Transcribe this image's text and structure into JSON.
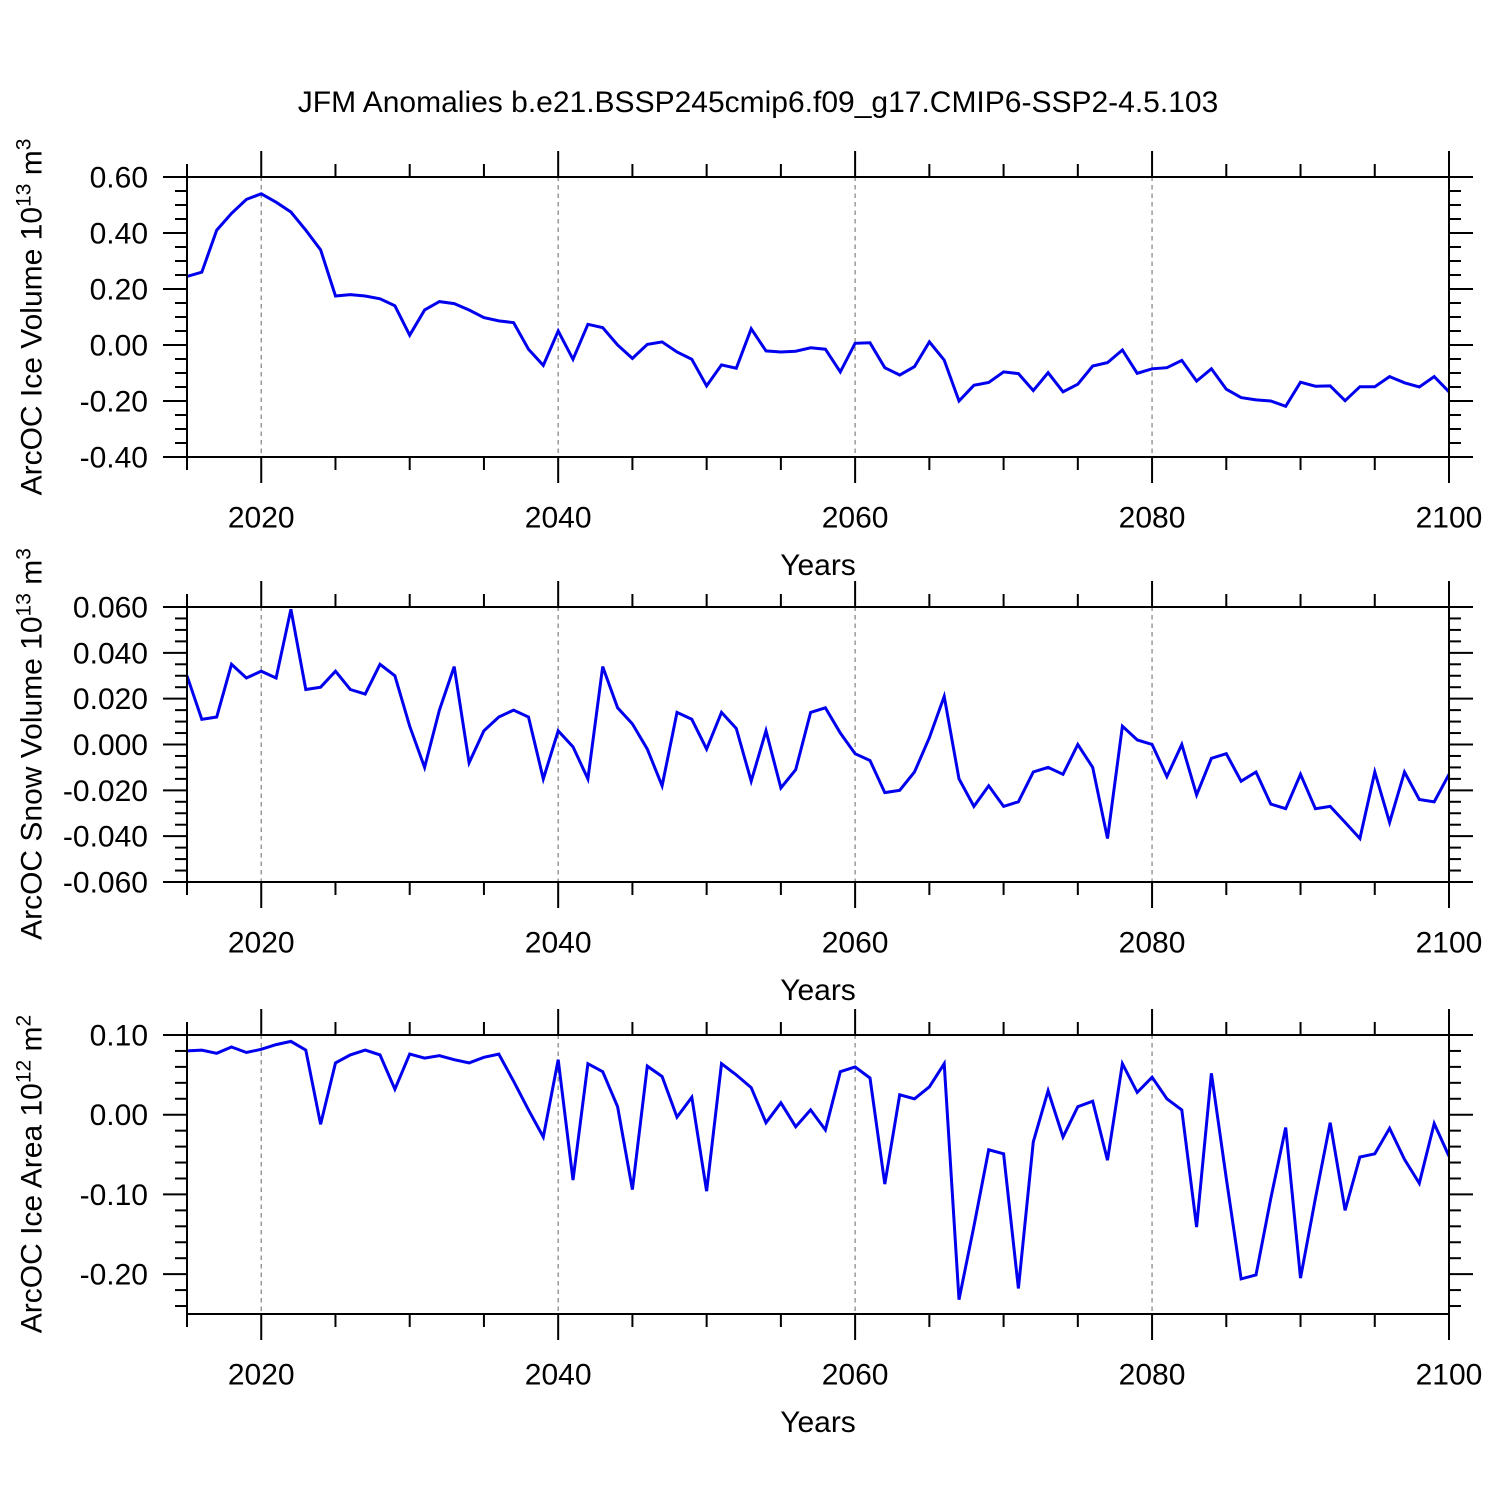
{
  "page": {
    "title": "JFM Anomalies b.e21.BSSP245cmip6.f09_g17.CMIP6-SSP2-4.5.103",
    "background": "#ffffff"
  },
  "axes": {
    "x_title": "Years",
    "xtick_values": [
      2020,
      2040,
      2060,
      2080,
      2100
    ],
    "xtick_labels": [
      "2020",
      "2040",
      "2060",
      "2080",
      "2100"
    ],
    "x_minor_step": 5,
    "grid_years": [
      2020,
      2040,
      2060,
      2080
    ],
    "grid_color": "#8a8a8a",
    "years": [
      2015,
      2016,
      2017,
      2018,
      2019,
      2020,
      2021,
      2022,
      2023,
      2024,
      2025,
      2026,
      2027,
      2028,
      2029,
      2030,
      2031,
      2032,
      2033,
      2034,
      2035,
      2036,
      2037,
      2038,
      2039,
      2040,
      2041,
      2042,
      2043,
      2044,
      2045,
      2046,
      2047,
      2048,
      2049,
      2050,
      2051,
      2052,
      2053,
      2054,
      2055,
      2056,
      2057,
      2058,
      2059,
      2060,
      2061,
      2062,
      2063,
      2064,
      2065,
      2066,
      2067,
      2068,
      2069,
      2070,
      2071,
      2072,
      2073,
      2074,
      2075,
      2076,
      2077,
      2078,
      2079,
      2080,
      2081,
      2082,
      2083,
      2084,
      2085,
      2086,
      2087,
      2088,
      2089,
      2090,
      2091,
      2092,
      2093,
      2094,
      2095,
      2096,
      2097,
      2098,
      2099,
      2100
    ]
  },
  "chart_data": [
    {
      "type": "line",
      "name": "ice-volume",
      "ylabel_base": "ArcOC Ice Volume 10",
      "ylabel_exp": "13",
      "ylabel_unit": " m",
      "ylabel_unit_exp": "3",
      "xlabel": "Years",
      "x_start": 2015,
      "x_end": 2100,
      "x_step": 1,
      "ylim": [
        -0.4,
        0.6
      ],
      "ytick_values": [
        0.6,
        0.4,
        0.2,
        0.0,
        -0.2,
        -0.4
      ],
      "ytick_labels": [
        "0.60",
        "0.40",
        "0.20",
        "0.00",
        "-0.20",
        "-0.40"
      ],
      "y_major_step": 0.2,
      "y_minor_step": 0.05,
      "line_color": "#0000EE",
      "values": [
        0.245,
        0.26,
        0.41,
        0.47,
        0.52,
        0.54,
        0.51,
        0.475,
        0.41,
        0.34,
        0.175,
        0.18,
        0.175,
        0.165,
        0.14,
        0.035,
        0.125,
        0.155,
        0.148,
        0.125,
        0.098,
        0.086,
        0.08,
        -0.015,
        -0.073,
        0.05,
        -0.051,
        0.074,
        0.062,
        0.0,
        -0.048,
        0.002,
        0.011,
        -0.025,
        -0.051,
        -0.146,
        -0.071,
        -0.083,
        0.058,
        -0.021,
        -0.025,
        -0.022,
        -0.01,
        -0.015,
        -0.096,
        0.006,
        0.008,
        -0.081,
        -0.107,
        -0.077,
        0.011,
        -0.054,
        -0.2,
        -0.144,
        -0.134,
        -0.096,
        -0.102,
        -0.163,
        -0.099,
        -0.167,
        -0.14,
        -0.075,
        -0.063,
        -0.018,
        -0.101,
        -0.085,
        -0.081,
        -0.055,
        -0.129,
        -0.085,
        -0.158,
        -0.188,
        -0.196,
        -0.2,
        -0.219,
        -0.133,
        -0.147,
        -0.146,
        -0.199,
        -0.149,
        -0.149,
        -0.113,
        -0.135,
        -0.15,
        -0.113,
        -0.167
      ]
    },
    {
      "type": "line",
      "name": "snow-volume",
      "ylabel_base": "ArcOC Snow Volume 10",
      "ylabel_exp": "13",
      "ylabel_unit": " m",
      "ylabel_unit_exp": "3",
      "xlabel": "Years",
      "x_start": 2015,
      "x_end": 2100,
      "x_step": 1,
      "ylim": [
        -0.06,
        0.06
      ],
      "ytick_values": [
        0.06,
        0.04,
        0.02,
        0.0,
        -0.02,
        -0.04,
        -0.06
      ],
      "ytick_labels": [
        "0.060",
        "0.040",
        "0.020",
        "0.000",
        "-0.020",
        "-0.040",
        "-0.060"
      ],
      "y_major_step": 0.02,
      "y_minor_step": 0.005,
      "line_color": "#0000EE",
      "values": [
        0.03,
        0.011,
        0.012,
        0.035,
        0.029,
        0.032,
        0.029,
        0.059,
        0.024,
        0.025,
        0.032,
        0.024,
        0.022,
        0.035,
        0.03,
        0.008,
        -0.01,
        0.015,
        0.034,
        -0.008,
        0.006,
        0.012,
        0.015,
        0.012,
        -0.015,
        0.006,
        -0.001,
        -0.015,
        0.034,
        0.016,
        0.009,
        -0.002,
        -0.018,
        0.014,
        0.011,
        -0.002,
        0.014,
        0.007,
        -0.016,
        0.006,
        -0.019,
        -0.011,
        0.014,
        0.016,
        0.005,
        -0.004,
        -0.007,
        -0.021,
        -0.02,
        -0.012,
        0.003,
        0.021,
        -0.015,
        -0.027,
        -0.018,
        -0.027,
        -0.025,
        -0.012,
        -0.01,
        -0.013,
        0.0,
        -0.01,
        -0.041,
        0.008,
        0.002,
        0.0,
        -0.014,
        0.0,
        -0.022,
        -0.006,
        -0.004,
        -0.016,
        -0.012,
        -0.026,
        -0.028,
        -0.013,
        -0.028,
        -0.027,
        -0.034,
        -0.041,
        -0.012,
        -0.034,
        -0.012,
        -0.024,
        -0.025,
        -0.013
      ]
    },
    {
      "type": "line",
      "name": "ice-area",
      "ylabel_base": "ArcOC Ice Area 10",
      "ylabel_exp": "12",
      "ylabel_unit": " m",
      "ylabel_unit_exp": "2",
      "xlabel": "Years",
      "x_start": 2015,
      "x_end": 2100,
      "x_step": 1,
      "ylim": [
        -0.25,
        0.1
      ],
      "ytick_values": [
        0.1,
        0.0,
        -0.1,
        -0.2
      ],
      "ytick_labels": [
        "0.10",
        "0.00",
        "-0.10",
        "-0.20"
      ],
      "y_major_step": 0.1,
      "y_minor_step": 0.02,
      "line_color": "#0000EE",
      "values": [
        0.08,
        0.081,
        0.077,
        0.085,
        0.078,
        0.082,
        0.088,
        0.092,
        0.081,
        -0.012,
        0.065,
        0.075,
        0.081,
        0.075,
        0.032,
        0.076,
        0.071,
        0.074,
        0.069,
        0.065,
        0.072,
        0.076,
        0.042,
        0.006,
        -0.028,
        0.069,
        -0.082,
        0.064,
        0.054,
        0.01,
        -0.094,
        0.061,
        0.048,
        -0.003,
        0.022,
        -0.096,
        0.064,
        0.05,
        0.034,
        -0.01,
        0.015,
        -0.015,
        0.006,
        -0.019,
        0.054,
        0.06,
        0.046,
        -0.087,
        0.025,
        0.02,
        0.035,
        0.064,
        -0.232,
        -0.14,
        -0.044,
        -0.049,
        -0.218,
        -0.034,
        0.03,
        -0.028,
        0.01,
        0.017,
        -0.057,
        0.064,
        0.028,
        0.047,
        0.02,
        0.006,
        -0.141,
        0.052,
        -0.08,
        -0.206,
        -0.201,
        -0.105,
        -0.016,
        -0.205,
        -0.105,
        -0.01,
        -0.12,
        -0.053,
        -0.049,
        -0.017,
        -0.056,
        -0.086,
        -0.011,
        -0.052
      ]
    }
  ]
}
